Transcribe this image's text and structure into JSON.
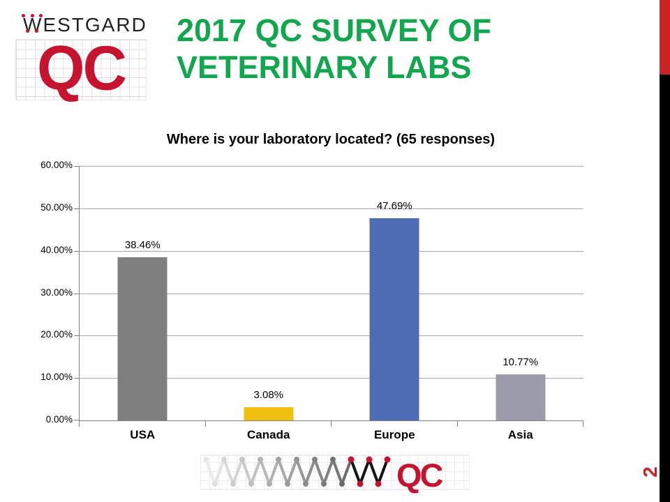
{
  "header": {
    "wordmark_w": "W",
    "wordmark_rest": "ESTGARD",
    "logo_qc": "QC",
    "title_line1": "2017 QC SURVEY OF",
    "title_line2": "VETERINARY LABS"
  },
  "footer": {
    "logo_qc": "QC"
  },
  "page": {
    "number": "2"
  },
  "colors": {
    "brand_red": "#C4142F",
    "stripe_red": "#CB2227",
    "stripe_black": "#000000",
    "title_green": "#12A64E",
    "gridline": "#A8A8A8",
    "axis": "#808080"
  },
  "chart_data": {
    "type": "bar",
    "title": "Where is your laboratory located? (65 responses)",
    "categories": [
      "USA",
      "Canada",
      "Europe",
      "Asia"
    ],
    "values": [
      38.46,
      3.08,
      47.69,
      10.77
    ],
    "value_labels": [
      "38.46%",
      "3.08%",
      "47.69%",
      "10.77%"
    ],
    "bar_colors": [
      "#7F7F7F",
      "#F0C011",
      "#4F6DB4",
      "#9C9BAB"
    ],
    "ylim": [
      0,
      60
    ],
    "yticks": [
      0,
      10,
      20,
      30,
      40,
      50,
      60
    ],
    "ytick_labels": [
      "0.00%",
      "10.00%",
      "20.00%",
      "30.00%",
      "40.00%",
      "50.00%",
      "60.00%"
    ],
    "xlabel": "",
    "ylabel": "",
    "grid": true,
    "legend": false
  }
}
